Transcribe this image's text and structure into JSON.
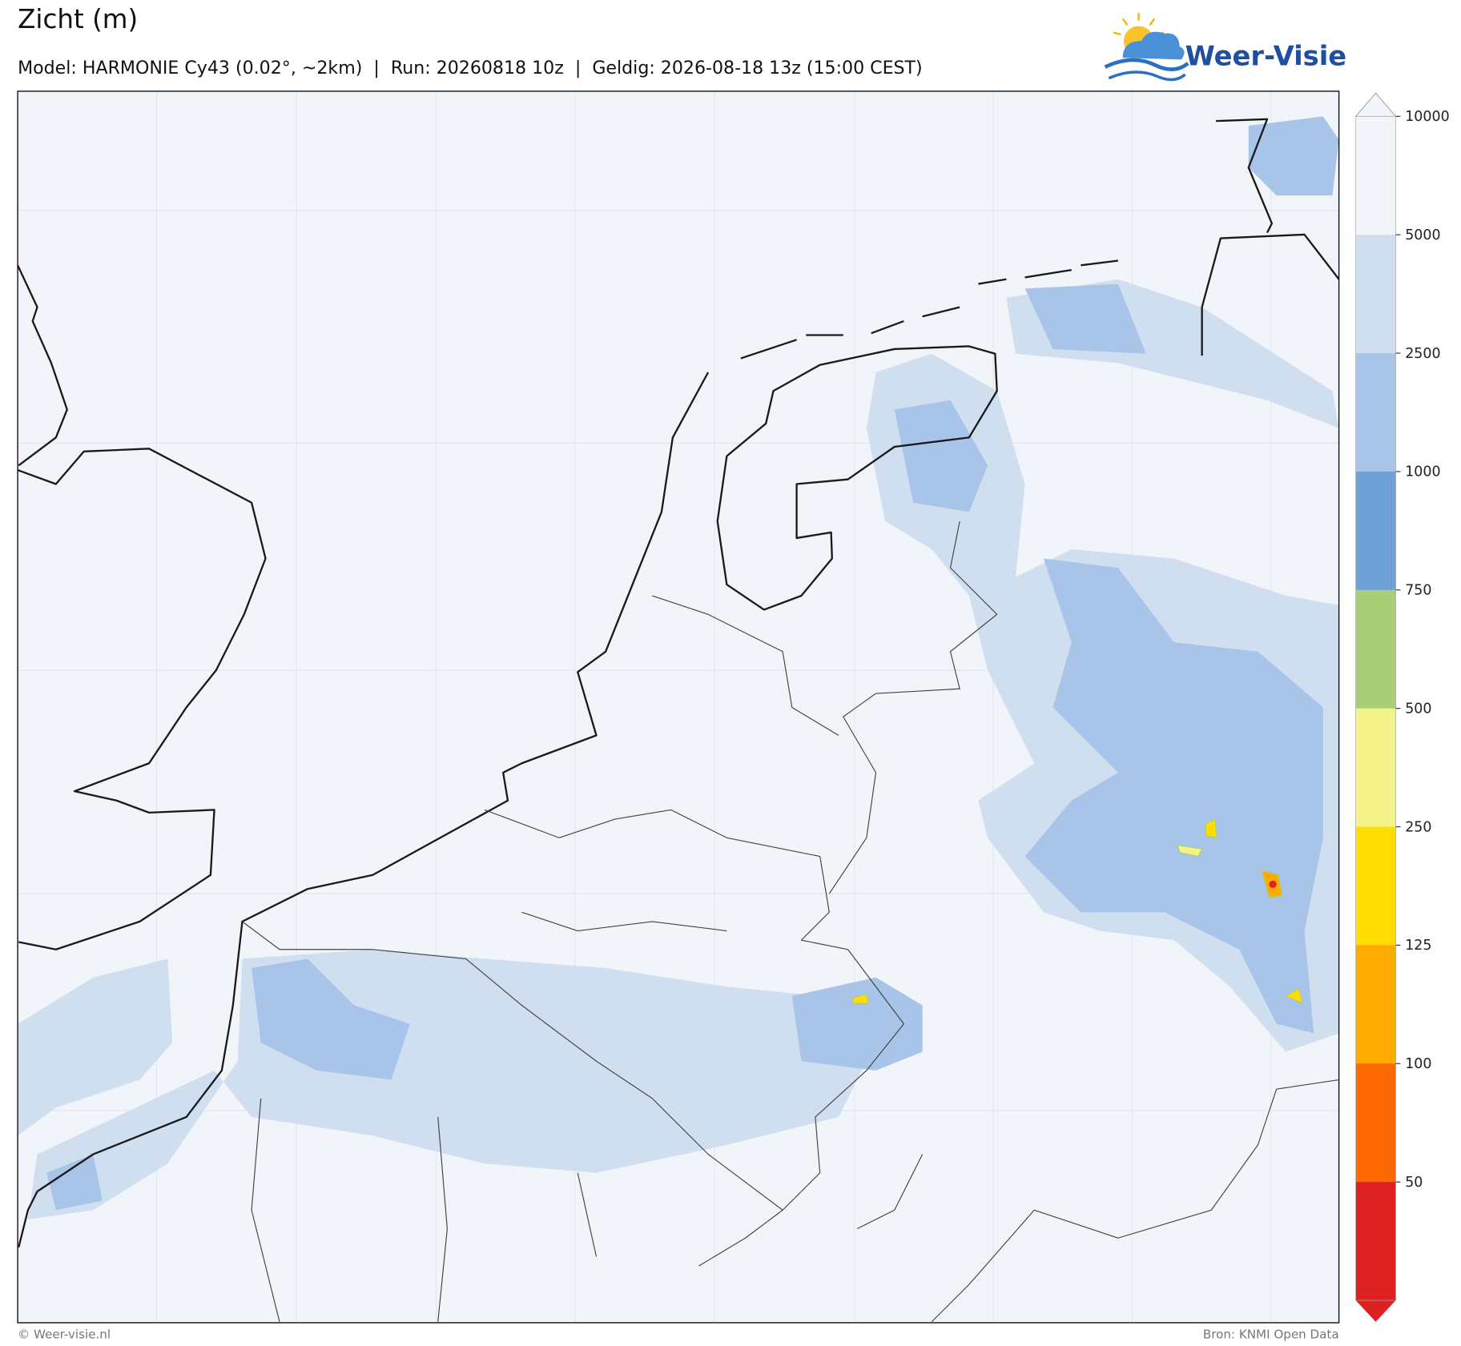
{
  "header": {
    "title": "Zicht (m)",
    "subtitle": "Model: HARMONIE Cy43 (0.02°, ~2km)  |  Run: 20260818 10z  |  Geldig: 2026-08-18 13z (15:00 CEST)"
  },
  "logo": {
    "text": "Weer-Visie"
  },
  "colorbar": {
    "ticks": [
      10000,
      5000,
      2500,
      1000,
      750,
      500,
      250,
      125,
      100,
      50
    ],
    "colors": [
      "#f1f5fa",
      "#cfdff0",
      "#a8c4e8",
      "#6fa0d8",
      "#a8cf78",
      "#f3f38a",
      "#ffdd00",
      "#ffaa00",
      "#ff6a00",
      "#dd2020"
    ]
  },
  "footer": {
    "left": "© Weer-visie.nl",
    "right": "Bron: KNMI Open Data"
  }
}
